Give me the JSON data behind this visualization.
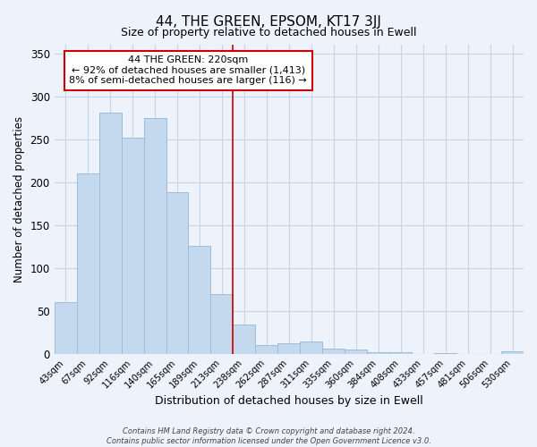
{
  "title": "44, THE GREEN, EPSOM, KT17 3JJ",
  "subtitle": "Size of property relative to detached houses in Ewell",
  "xlabel": "Distribution of detached houses by size in Ewell",
  "ylabel": "Number of detached properties",
  "bar_labels": [
    "43sqm",
    "67sqm",
    "92sqm",
    "116sqm",
    "140sqm",
    "165sqm",
    "189sqm",
    "213sqm",
    "238sqm",
    "262sqm",
    "287sqm",
    "311sqm",
    "335sqm",
    "360sqm",
    "384sqm",
    "408sqm",
    "433sqm",
    "457sqm",
    "481sqm",
    "506sqm",
    "530sqm"
  ],
  "bar_values": [
    60,
    210,
    281,
    252,
    275,
    188,
    126,
    70,
    34,
    10,
    12,
    15,
    6,
    5,
    2,
    2,
    0,
    1,
    0,
    0,
    3
  ],
  "bar_color": "#c5d9ee",
  "bar_edge_color": "#9dbdd8",
  "vline_x": 7.5,
  "vline_color": "#cc0000",
  "annotation_title": "44 THE GREEN: 220sqm",
  "annotation_line1": "← 92% of detached houses are smaller (1,413)",
  "annotation_line2": "8% of semi-detached houses are larger (116) →",
  "annotation_box_color": "#ffffff",
  "annotation_box_edge": "#cc0000",
  "ylim": [
    0,
    360
  ],
  "yticks": [
    0,
    50,
    100,
    150,
    200,
    250,
    300,
    350
  ],
  "footer1": "Contains HM Land Registry data © Crown copyright and database right 2024.",
  "footer2": "Contains public sector information licensed under the Open Government Licence v3.0.",
  "bg_color": "#edf2fb",
  "plot_bg_color": "#edf2fb",
  "grid_color": "#c8d4e8"
}
